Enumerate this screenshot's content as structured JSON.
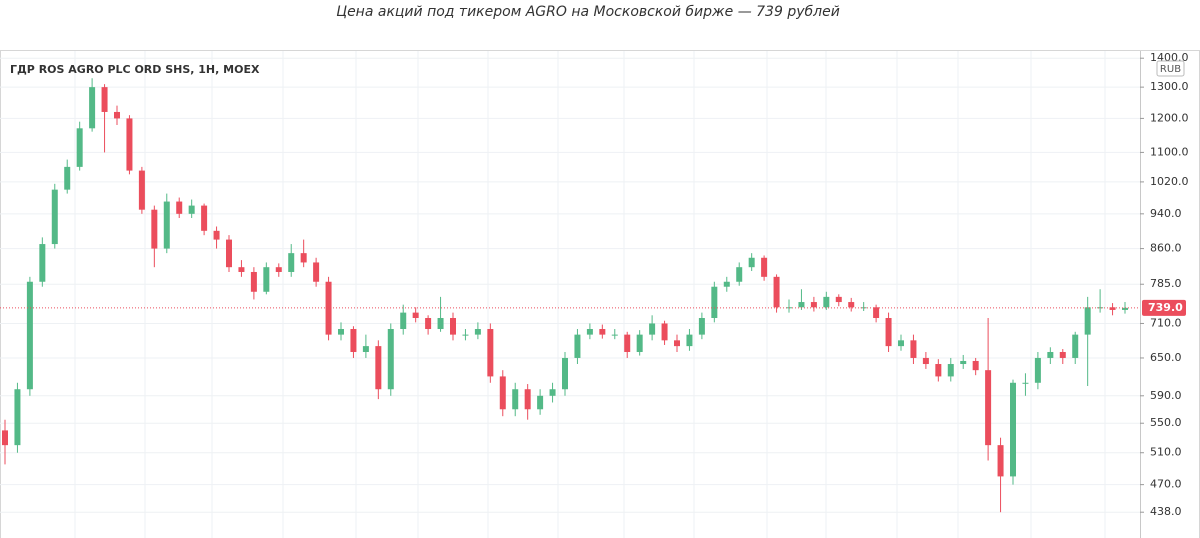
{
  "chart_data": {
    "type": "candlestick",
    "title": "Цена акций под тикером AGRO на Московской бирже — 739 рублей",
    "symbol": "ГДР ROS AGRO PLC ORD SHS, 1H, MOEX",
    "currency": "RUB",
    "log_scale": true,
    "grid": true,
    "up_color": "#53b987",
    "down_color": "#eb4d5c",
    "ylim": [
      410,
      1426
    ],
    "yticks": [
      {
        "value": 1400,
        "label": "1400.0"
      },
      {
        "value": 1300,
        "label": "1300.0"
      },
      {
        "value": 1200,
        "label": "1200.0"
      },
      {
        "value": 1100,
        "label": "1100.0"
      },
      {
        "value": 1020,
        "label": "1020.0"
      },
      {
        "value": 940,
        "label": "940.0"
      },
      {
        "value": 860,
        "label": "860.0"
      },
      {
        "value": 785,
        "label": "785.0"
      },
      {
        "value": 710,
        "label": "710.0"
      },
      {
        "value": 650,
        "label": "650.0"
      },
      {
        "value": 590,
        "label": "590.0"
      },
      {
        "value": 550,
        "label": "550.0"
      },
      {
        "value": 510,
        "label": "510.0"
      },
      {
        "value": 470,
        "label": "470.0"
      },
      {
        "value": 438,
        "label": "438.0"
      }
    ],
    "last_price": {
      "value": 739,
      "label": "739.0"
    },
    "open": [
      540,
      520,
      600,
      790,
      870,
      1000,
      1060,
      1170,
      1300,
      1220,
      1200,
      1050,
      950,
      860,
      970,
      940,
      960,
      900,
      880,
      820,
      810,
      770,
      820,
      810,
      850,
      830,
      790,
      690,
      700,
      660,
      670,
      600,
      700,
      730,
      720,
      700,
      720,
      690,
      690,
      700,
      620,
      570,
      600,
      570,
      590,
      600,
      650,
      690,
      700,
      690,
      690,
      660,
      690,
      710,
      680,
      670,
      690,
      720,
      780,
      790,
      820,
      840,
      800,
      740,
      740,
      750,
      740,
      760,
      750,
      740,
      740,
      720,
      670,
      680,
      650,
      640,
      620,
      640,
      645,
      630,
      520,
      480,
      610,
      610,
      650,
      660,
      650,
      690,
      740,
      740,
      735
    ],
    "high": [
      555,
      610,
      800,
      885,
      1015,
      1080,
      1190,
      1330,
      1310,
      1240,
      1210,
      1060,
      960,
      990,
      980,
      975,
      965,
      910,
      890,
      835,
      820,
      830,
      828,
      870,
      880,
      840,
      800,
      712,
      705,
      690,
      680,
      710,
      745,
      740,
      725,
      760,
      730,
      700,
      712,
      710,
      630,
      610,
      608,
      600,
      610,
      660,
      700,
      710,
      708,
      700,
      695,
      698,
      725,
      715,
      690,
      700,
      730,
      790,
      800,
      830,
      850,
      845,
      805,
      755,
      775,
      760,
      770,
      765,
      758,
      750,
      745,
      730,
      690,
      690,
      660,
      648,
      650,
      655,
      650,
      720,
      530,
      615,
      625,
      660,
      668,
      665,
      695,
      760,
      775,
      748,
      750
    ],
    "low": [
      495,
      510,
      590,
      780,
      860,
      990,
      1050,
      1160,
      1100,
      1180,
      1040,
      940,
      820,
      850,
      930,
      930,
      890,
      860,
      810,
      800,
      755,
      765,
      800,
      800,
      820,
      780,
      680,
      680,
      650,
      650,
      585,
      590,
      690,
      712,
      690,
      695,
      680,
      680,
      682,
      610,
      560,
      560,
      555,
      562,
      580,
      590,
      640,
      682,
      683,
      682,
      650,
      654,
      680,
      672,
      660,
      662,
      682,
      712,
      770,
      782,
      812,
      792,
      730,
      730,
      735,
      732,
      735,
      742,
      732,
      733,
      712,
      660,
      662,
      640,
      632,
      612,
      612,
      632,
      622,
      500,
      438,
      470,
      590,
      600,
      640,
      640,
      640,
      605,
      730,
      725,
      728
    ],
    "close": [
      520,
      600,
      790,
      870,
      1000,
      1060,
      1170,
      1300,
      1220,
      1200,
      1050,
      950,
      860,
      970,
      940,
      960,
      900,
      880,
      820,
      810,
      770,
      820,
      810,
      850,
      830,
      790,
      690,
      700,
      660,
      670,
      600,
      700,
      730,
      720,
      700,
      720,
      690,
      690,
      700,
      620,
      570,
      600,
      570,
      590,
      600,
      650,
      690,
      700,
      690,
      690,
      660,
      690,
      710,
      680,
      670,
      690,
      720,
      780,
      790,
      820,
      840,
      800,
      740,
      740,
      750,
      740,
      760,
      750,
      740,
      740,
      720,
      670,
      680,
      650,
      640,
      620,
      640,
      645,
      630,
      520,
      480,
      610,
      610,
      650,
      660,
      650,
      690,
      740,
      740,
      735,
      739
    ]
  }
}
